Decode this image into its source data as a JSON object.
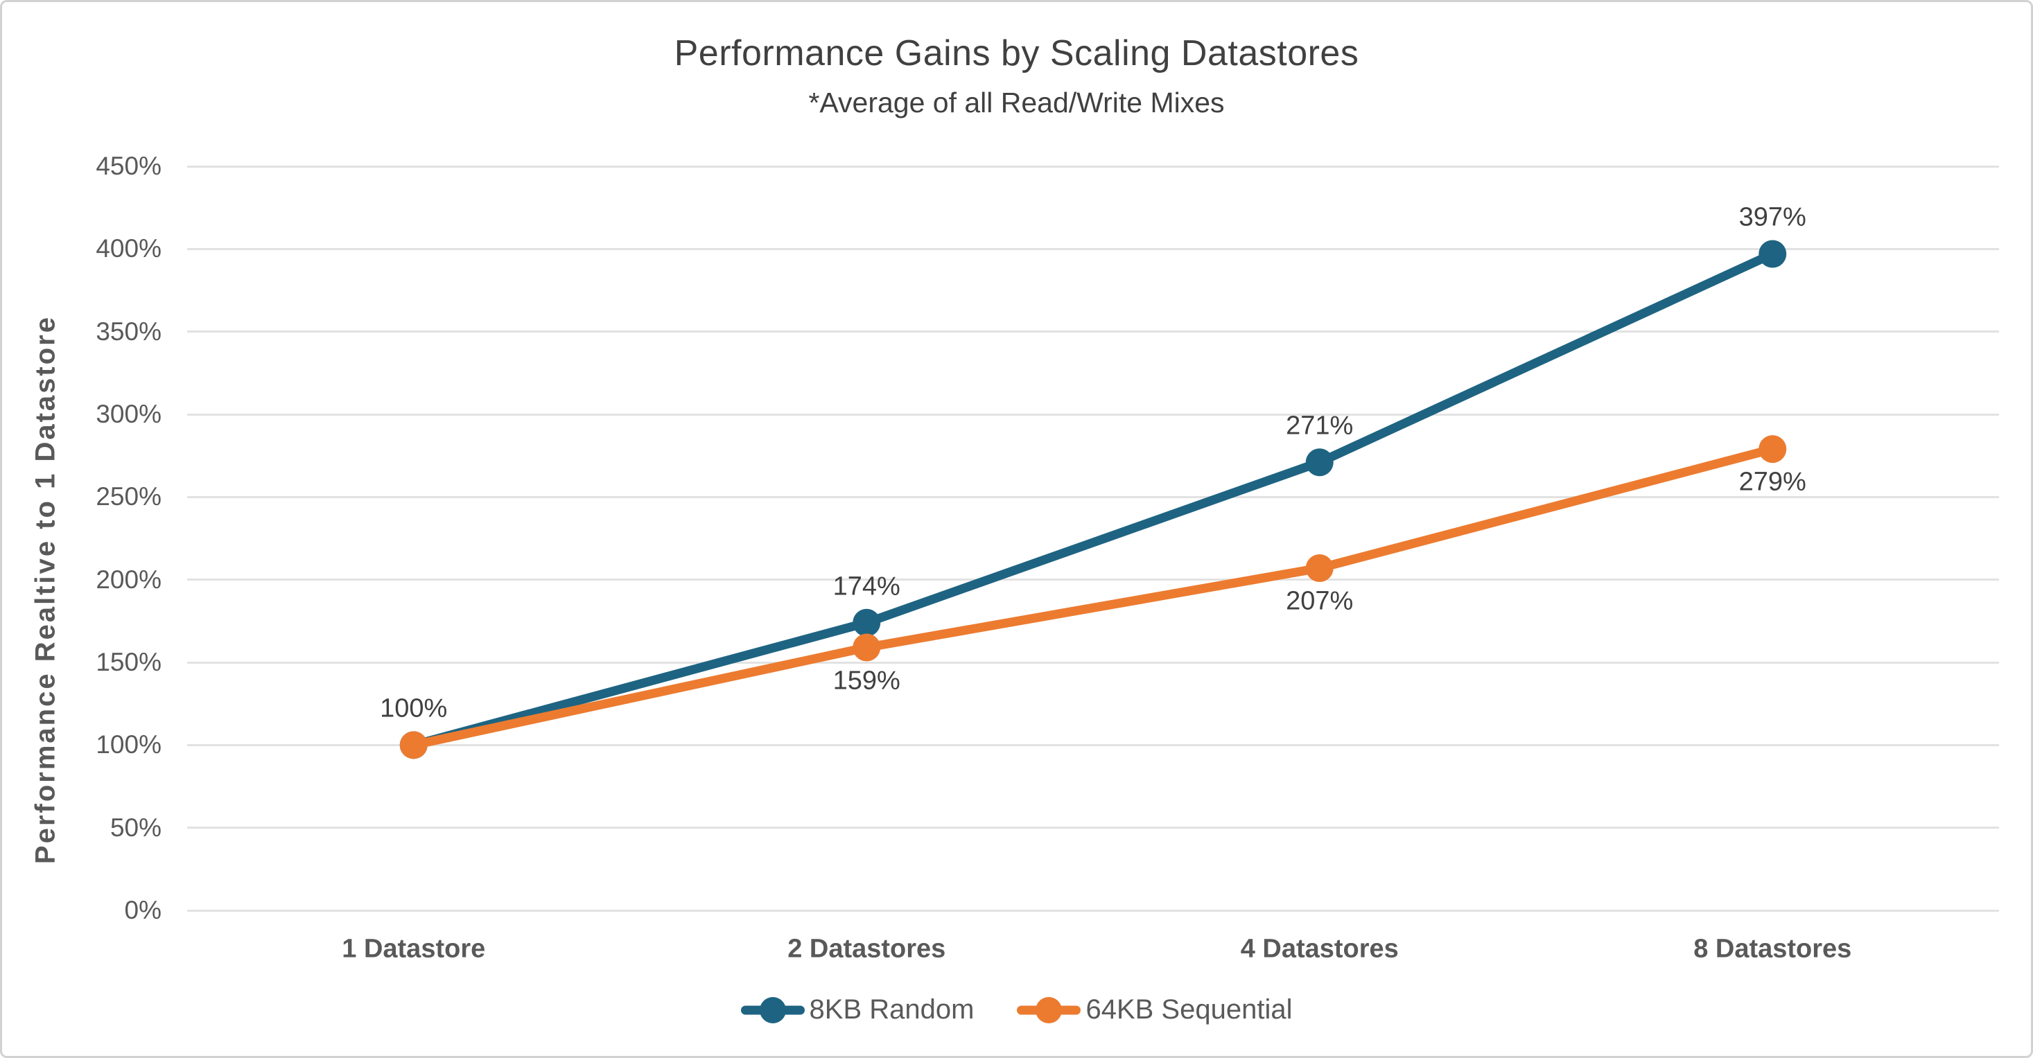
{
  "chart_data": {
    "type": "line",
    "title": "Performance Gains by Scaling Datastores",
    "subtitle": "*Average of all Read/Write Mixes",
    "ylabel": "Performance Realtive to 1 Datastore",
    "xlabel": "",
    "categories": [
      "1 Datastore",
      "2 Datastores",
      "4 Datastores",
      "8 Datastores"
    ],
    "series": [
      {
        "name": "8KB Random",
        "color": "#1e6482",
        "values": [
          100,
          174,
          271,
          397
        ],
        "data_labels": [
          "100%",
          "174%",
          "271%",
          "397%"
        ],
        "label_position": "above"
      },
      {
        "name": "64KB Sequential",
        "color": "#ec7b30",
        "values": [
          100,
          159,
          207,
          279
        ],
        "data_labels": [
          "",
          "159%",
          "207%",
          "279%"
        ],
        "label_position": "below"
      }
    ],
    "y_axis": {
      "min": 0,
      "max": 450,
      "step": 50,
      "tick_labels": [
        "0%",
        "50%",
        "100%",
        "150%",
        "200%",
        "250%",
        "300%",
        "350%",
        "400%",
        "450%"
      ]
    },
    "grid": true,
    "legend_position": "bottom",
    "colors": {
      "grid": "#e2e2e2",
      "title_text": "#404040",
      "axis_text": "#595959",
      "data_label_text": "#404040",
      "background": "#ffffff",
      "border": "#d2d2d2"
    }
  }
}
